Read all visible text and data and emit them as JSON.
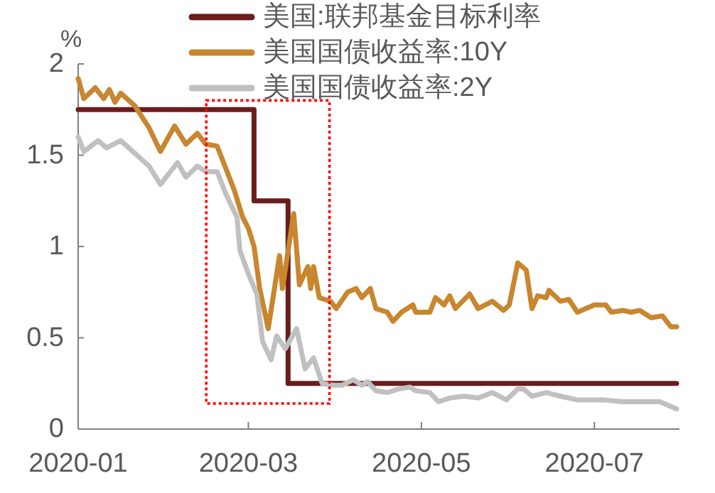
{
  "chart_data": {
    "type": "line",
    "ylabel": "%",
    "xlim": [
      "2020-01-01",
      "2020-07-31"
    ],
    "xticks": [
      {
        "value": "2020-01-01",
        "label": "2020-01"
      },
      {
        "value": "2020-03-01",
        "label": "2020-03"
      },
      {
        "value": "2020-05-01",
        "label": "2020-05"
      },
      {
        "value": "2020-07-01",
        "label": "2020-07"
      }
    ],
    "ylim": [
      0,
      2
    ],
    "yticks": [
      0,
      0.5,
      1,
      1.5,
      2
    ],
    "legend": "top",
    "grid": false,
    "marker": "none",
    "line_style": "solid",
    "series": [
      {
        "name": "美国:联邦基金目标利率",
        "type": "step",
        "color": "#6b1c1c",
        "x": [
          "2020-01-01",
          "2020-03-03",
          "2020-03-15",
          "2020-07-30"
        ],
        "values": [
          1.75,
          1.25,
          0.25,
          0.25
        ]
      },
      {
        "name": "美国国债收益率:10Y",
        "color": "#c8862f",
        "x": [
          "2020-01-01",
          "2020-01-03",
          "2020-01-07",
          "2020-01-10",
          "2020-01-12",
          "2020-01-14",
          "2020-01-16",
          "2020-01-21",
          "2020-01-26",
          "2020-01-30",
          "2020-02-04",
          "2020-02-08",
          "2020-02-12",
          "2020-02-15",
          "2020-02-19",
          "2020-02-22",
          "2020-02-25",
          "2020-02-28",
          "2020-03-01",
          "2020-03-03",
          "2020-03-05",
          "2020-03-08",
          "2020-03-12",
          "2020-03-13",
          "2020-03-17",
          "2020-03-19",
          "2020-03-22",
          "2020-03-23",
          "2020-03-24",
          "2020-03-26",
          "2020-03-30",
          "2020-04-01",
          "2020-04-05",
          "2020-04-08",
          "2020-04-10",
          "2020-04-13",
          "2020-04-15",
          "2020-04-19",
          "2020-04-21",
          "2020-04-24",
          "2020-04-28",
          "2020-04-29",
          "2020-05-04",
          "2020-05-06",
          "2020-05-09",
          "2020-05-11",
          "2020-05-13",
          "2020-05-18",
          "2020-05-21",
          "2020-05-26",
          "2020-05-30",
          "2020-06-01",
          "2020-06-04",
          "2020-06-07",
          "2020-06-09",
          "2020-06-11",
          "2020-06-14",
          "2020-06-15",
          "2020-06-19",
          "2020-06-22",
          "2020-06-25",
          "2020-07-01",
          "2020-07-05",
          "2020-07-07",
          "2020-07-11",
          "2020-07-14",
          "2020-07-17",
          "2020-07-21",
          "2020-07-25",
          "2020-07-28",
          "2020-07-30"
        ],
        "values": [
          1.92,
          1.81,
          1.87,
          1.81,
          1.86,
          1.79,
          1.84,
          1.77,
          1.65,
          1.52,
          1.66,
          1.56,
          1.62,
          1.56,
          1.55,
          1.43,
          1.31,
          1.16,
          1.1,
          1.0,
          0.77,
          0.55,
          0.95,
          0.77,
          1.18,
          0.79,
          0.89,
          0.77,
          0.89,
          0.72,
          0.7,
          0.66,
          0.75,
          0.77,
          0.72,
          0.77,
          0.66,
          0.64,
          0.59,
          0.64,
          0.68,
          0.64,
          0.64,
          0.72,
          0.68,
          0.73,
          0.66,
          0.74,
          0.66,
          0.7,
          0.65,
          0.68,
          0.91,
          0.87,
          0.66,
          0.73,
          0.72,
          0.76,
          0.7,
          0.71,
          0.64,
          0.68,
          0.68,
          0.64,
          0.65,
          0.64,
          0.65,
          0.61,
          0.62,
          0.56,
          0.56
        ]
      },
      {
        "name": "美国国债收益率:2Y",
        "color": "#c0c0c0",
        "x": [
          "2020-01-01",
          "2020-01-03",
          "2020-01-08",
          "2020-01-11",
          "2020-01-16",
          "2020-01-21",
          "2020-01-26",
          "2020-01-30",
          "2020-02-05",
          "2020-02-08",
          "2020-02-12",
          "2020-02-15",
          "2020-02-19",
          "2020-02-22",
          "2020-02-26",
          "2020-02-27",
          "2020-03-01",
          "2020-03-04",
          "2020-03-06",
          "2020-03-09",
          "2020-03-11",
          "2020-03-14",
          "2020-03-18",
          "2020-03-21",
          "2020-03-24",
          "2020-03-27",
          "2020-03-31",
          "2020-04-03",
          "2020-04-07",
          "2020-04-10",
          "2020-04-12",
          "2020-04-15",
          "2020-04-19",
          "2020-04-23",
          "2020-04-27",
          "2020-04-29",
          "2020-05-04",
          "2020-05-07",
          "2020-05-11",
          "2020-05-16",
          "2020-05-21",
          "2020-05-26",
          "2020-05-31",
          "2020-06-04",
          "2020-06-06",
          "2020-06-09",
          "2020-06-14",
          "2020-06-19",
          "2020-06-25",
          "2020-07-04",
          "2020-07-11",
          "2020-07-17",
          "2020-07-24",
          "2020-07-27",
          "2020-07-30"
        ],
        "values": [
          1.6,
          1.52,
          1.58,
          1.54,
          1.58,
          1.51,
          1.44,
          1.34,
          1.46,
          1.38,
          1.44,
          1.41,
          1.41,
          1.29,
          1.16,
          0.98,
          0.85,
          0.74,
          0.48,
          0.38,
          0.51,
          0.44,
          0.55,
          0.33,
          0.39,
          0.25,
          0.24,
          0.24,
          0.27,
          0.24,
          0.26,
          0.21,
          0.2,
          0.22,
          0.23,
          0.21,
          0.2,
          0.15,
          0.17,
          0.18,
          0.17,
          0.2,
          0.16,
          0.22,
          0.22,
          0.18,
          0.2,
          0.18,
          0.16,
          0.16,
          0.15,
          0.15,
          0.15,
          0.13,
          0.11
        ]
      }
    ]
  }
}
